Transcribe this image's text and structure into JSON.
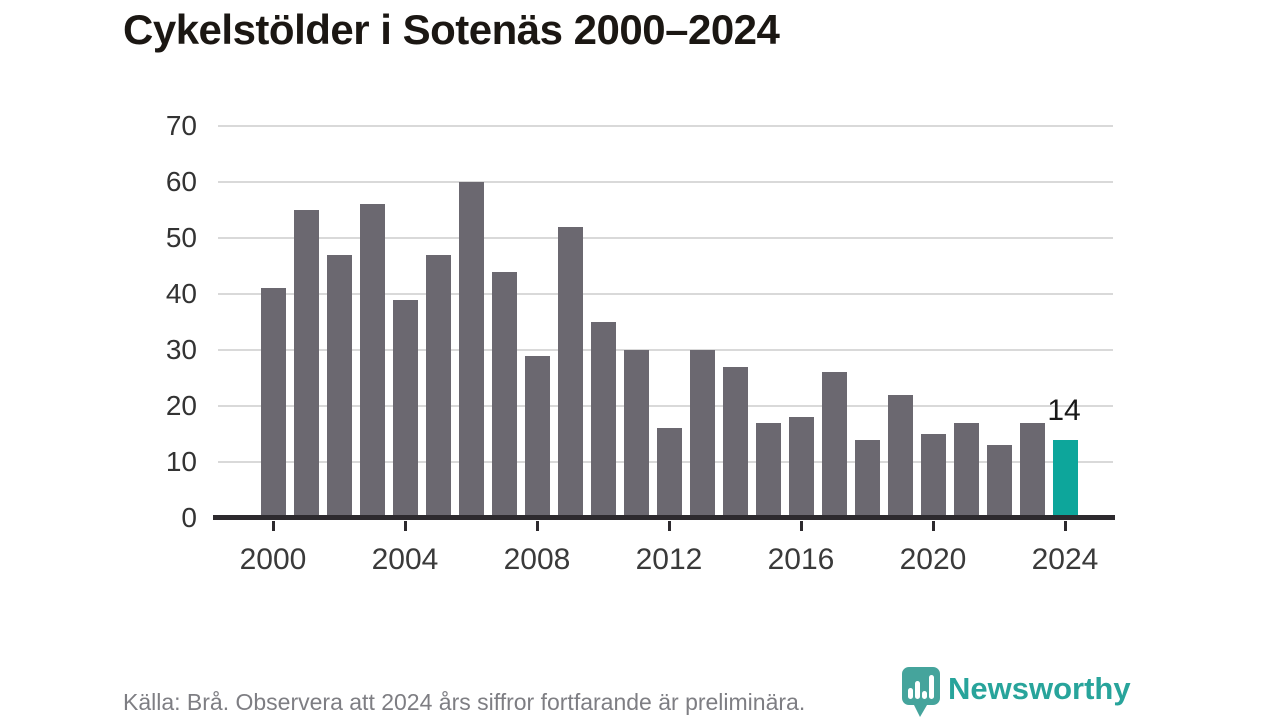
{
  "title": "Cykelstölder i Sotenäs 2000–2024",
  "chart_data": {
    "type": "bar",
    "title": "Cykelstölder i Sotenäs 2000–2024",
    "xlabel": "",
    "ylabel": "",
    "x": [
      2000,
      2001,
      2002,
      2003,
      2004,
      2005,
      2006,
      2007,
      2008,
      2009,
      2010,
      2011,
      2012,
      2013,
      2014,
      2015,
      2016,
      2017,
      2018,
      2019,
      2020,
      2021,
      2022,
      2023,
      2024
    ],
    "values": [
      41,
      55,
      47,
      56,
      39,
      47,
      60,
      44,
      29,
      52,
      35,
      30,
      16,
      30,
      27,
      17,
      18,
      26,
      14,
      22,
      15,
      17,
      13,
      17,
      14
    ],
    "ylim": [
      0,
      70
    ],
    "yticks": [
      0,
      10,
      20,
      30,
      40,
      50,
      60,
      70
    ],
    "xticks": [
      2000,
      2004,
      2008,
      2012,
      2016,
      2020,
      2024
    ],
    "grid": true,
    "legend": "none",
    "highlight": {
      "year": 2024,
      "value": 14,
      "label": "14"
    },
    "bar_color": "#6b6870",
    "highlight_color": "#0da69b"
  },
  "footer": {
    "source_note": "Källa: Brå. Observera att 2024 års siffror fortfarande är preliminära.",
    "logo_text": "Newsworthy"
  },
  "colors": {
    "title": "#1b1713",
    "axis_labels": "#3a3a3a",
    "gridline": "#d9d9d9",
    "baseline": "#2d2a2e",
    "footer_text": "#7e7e83",
    "logo_teal": "#28a49b"
  }
}
